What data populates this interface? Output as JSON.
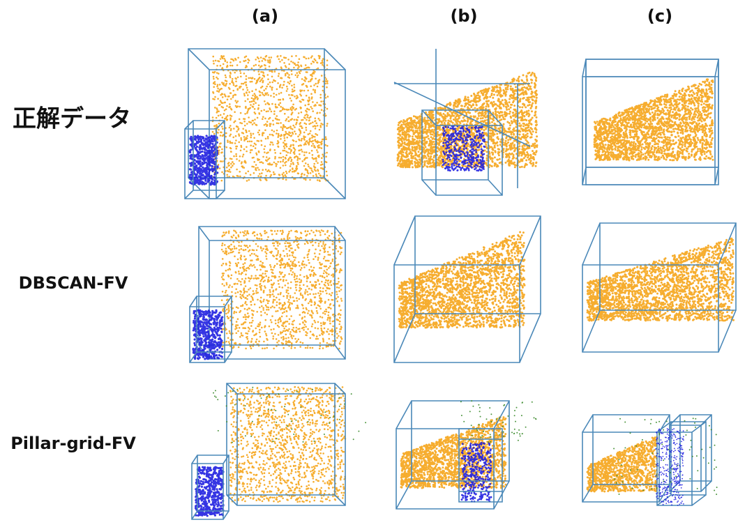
{
  "columns": [
    "(a)",
    "(b)",
    "(c)"
  ],
  "rows": [
    "正解データ",
    "DBSCAN-FV",
    "Pillar-grid-FV"
  ]
}
